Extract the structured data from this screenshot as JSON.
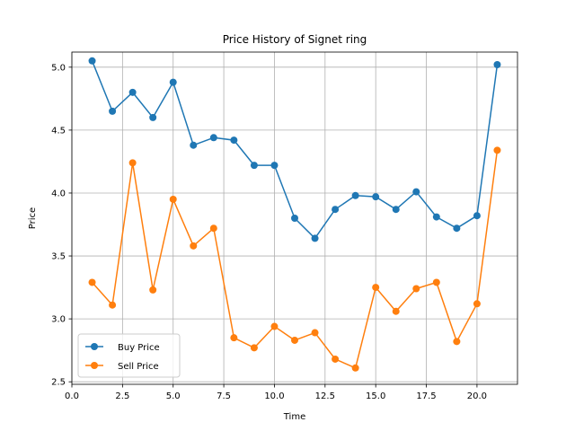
{
  "chart_data": {
    "type": "line",
    "title": "Price History of Signet ring",
    "xlabel": "Time",
    "ylabel": "Price",
    "xlim": [
      0,
      22
    ],
    "ylim": [
      2.48,
      5.12
    ],
    "xticks": [
      0.0,
      2.5,
      5.0,
      7.5,
      10.0,
      12.5,
      15.0,
      17.5,
      20.0
    ],
    "xtick_labels": [
      "0.0",
      "2.5",
      "5.0",
      "7.5",
      "10.0",
      "12.5",
      "15.0",
      "17.5",
      "20.0"
    ],
    "yticks": [
      2.5,
      3.0,
      3.5,
      4.0,
      4.5,
      5.0
    ],
    "ytick_labels": [
      "2.5",
      "3.0",
      "3.5",
      "4.0",
      "4.5",
      "5.0"
    ],
    "grid": true,
    "legend_position": "lower-left",
    "x": [
      1,
      2,
      3,
      4,
      5,
      6,
      7,
      8,
      9,
      10,
      11,
      12,
      13,
      14,
      15,
      16,
      17,
      18,
      19,
      20,
      21
    ],
    "series": [
      {
        "name": "Buy Price",
        "color": "#1f77b4",
        "values": [
          5.05,
          4.65,
          4.8,
          4.6,
          4.88,
          4.38,
          4.44,
          4.42,
          4.22,
          4.22,
          3.8,
          3.64,
          3.87,
          3.98,
          3.97,
          3.87,
          4.01,
          3.81,
          3.72,
          3.82,
          5.02
        ]
      },
      {
        "name": "Sell Price",
        "color": "#ff7f0e",
        "values": [
          3.29,
          3.11,
          4.24,
          3.23,
          3.95,
          3.58,
          3.72,
          2.85,
          2.77,
          2.94,
          2.83,
          2.89,
          2.68,
          2.61,
          3.25,
          3.06,
          3.24,
          3.29,
          2.82,
          3.12,
          4.34
        ]
      }
    ]
  }
}
